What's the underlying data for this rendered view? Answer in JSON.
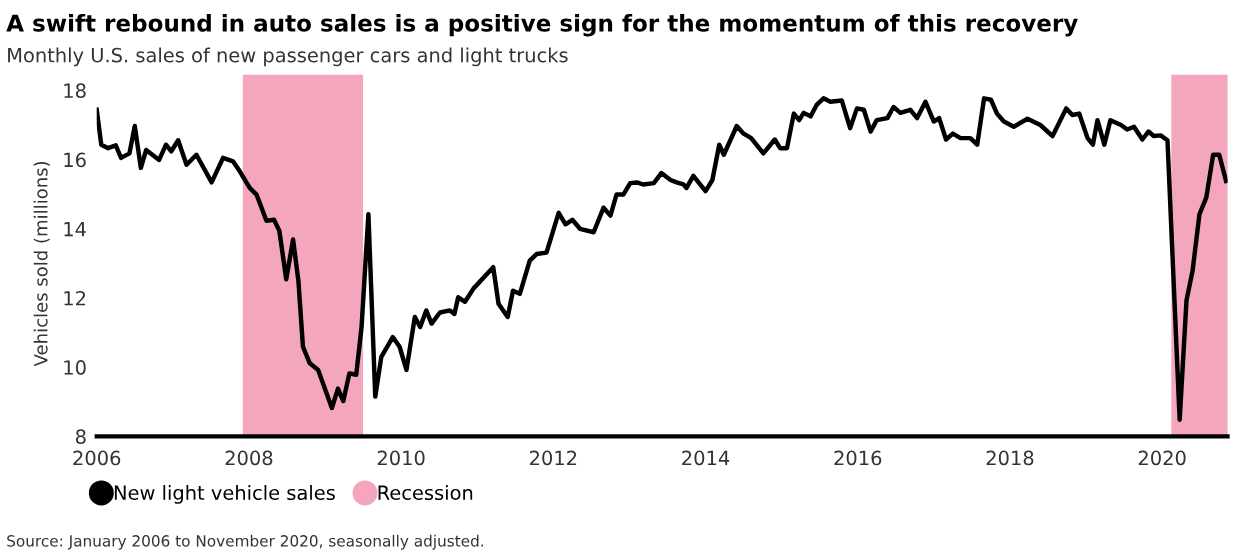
{
  "chart_data": {
    "type": "line",
    "title": "A swift rebound in auto sales is a positive sign for the momentum of this recovery",
    "subtitle": "Monthly U.S. sales of new passenger cars and light trucks",
    "ylabel": "Vehicles sold (millions)",
    "annotations": [
      "Source: January 2006 to November 2020, seasonally adjusted."
    ],
    "series": [
      {
        "name": "New light vehicle sales",
        "color": "#000000",
        "x": [
          2006.0,
          2006.06,
          2006.15,
          2006.25,
          2006.32,
          2006.43,
          2006.5,
          2006.58,
          2006.65,
          2006.82,
          2006.91,
          2006.98,
          2007.07,
          2007.18,
          2007.31,
          2007.51,
          2007.66,
          2007.79,
          2007.88,
          2008.01,
          2008.1,
          2008.23,
          2008.33,
          2008.4,
          2008.49,
          2008.58,
          2008.65,
          2008.71,
          2008.8,
          2008.91,
          2009.09,
          2009.17,
          2009.24,
          2009.32,
          2009.41,
          2009.48,
          2009.57,
          2009.66,
          2009.74,
          2009.89,
          2009.98,
          2010.07,
          2010.18,
          2010.25,
          2010.33,
          2010.4,
          2010.51,
          2010.64,
          2010.7,
          2010.75,
          2010.84,
          2010.95,
          2011.21,
          2011.28,
          2011.4,
          2011.47,
          2011.56,
          2011.69,
          2011.78,
          2011.91,
          2012.07,
          2012.16,
          2012.25,
          2012.35,
          2012.53,
          2012.66,
          2012.75,
          2012.83,
          2012.92,
          2013.01,
          2013.1,
          2013.18,
          2013.32,
          2013.42,
          2013.54,
          2013.62,
          2013.71,
          2013.75,
          2013.84,
          2014.0,
          2014.09,
          2014.18,
          2014.24,
          2014.41,
          2014.5,
          2014.6,
          2014.76,
          2014.91,
          2014.98,
          2015.07,
          2015.16,
          2015.23,
          2015.29,
          2015.38,
          2015.46,
          2015.55,
          2015.64,
          2015.79,
          2015.9,
          2015.99,
          2016.08,
          2016.17,
          2016.25,
          2016.39,
          2016.47,
          2016.56,
          2016.69,
          2016.78,
          2016.89,
          2017.0,
          2017.07,
          2017.16,
          2017.25,
          2017.35,
          2017.48,
          2017.57,
          2017.66,
          2017.75,
          2017.83,
          2017.92,
          2018.05,
          2018.23,
          2018.4,
          2018.56,
          2018.74,
          2018.82,
          2018.91,
          2019.02,
          2019.09,
          2019.15,
          2019.24,
          2019.32,
          2019.46,
          2019.54,
          2019.63,
          2019.74,
          2019.82,
          2019.89,
          2019.98,
          2020.07,
          2020.23,
          2020.32,
          2020.4,
          2020.49,
          2020.58,
          2020.67,
          2020.75,
          2020.84
        ],
        "values": [
          17.44,
          16.43,
          16.33,
          16.41,
          16.05,
          16.18,
          16.97,
          15.76,
          16.28,
          15.99,
          16.43,
          16.24,
          16.56,
          15.85,
          16.14,
          15.34,
          16.05,
          15.95,
          15.66,
          15.18,
          14.99,
          14.23,
          14.26,
          13.94,
          12.54,
          13.69,
          12.5,
          10.59,
          10.11,
          9.92,
          8.82,
          9.38,
          9.02,
          9.82,
          9.78,
          11.16,
          14.42,
          9.15,
          10.3,
          10.87,
          10.59,
          9.92,
          11.45,
          11.16,
          11.64,
          11.26,
          11.58,
          11.64,
          11.54,
          12.02,
          11.89,
          12.27,
          12.89,
          11.83,
          11.45,
          12.21,
          12.12,
          13.08,
          13.27,
          13.31,
          14.46,
          14.13,
          14.26,
          14.0,
          13.9,
          14.61,
          14.38,
          14.99,
          14.99,
          15.32,
          15.34,
          15.28,
          15.32,
          15.61,
          15.41,
          15.34,
          15.28,
          15.18,
          15.53,
          15.09,
          15.41,
          16.43,
          16.14,
          16.97,
          16.75,
          16.62,
          16.18,
          16.58,
          16.33,
          16.33,
          17.33,
          17.14,
          17.35,
          17.25,
          17.58,
          17.77,
          17.67,
          17.71,
          16.91,
          17.48,
          17.44,
          16.81,
          17.14,
          17.2,
          17.52,
          17.35,
          17.44,
          17.2,
          17.67,
          17.1,
          17.2,
          16.58,
          16.75,
          16.62,
          16.62,
          16.43,
          17.77,
          17.73,
          17.33,
          17.1,
          16.95,
          17.18,
          17.0,
          16.68,
          17.48,
          17.29,
          17.33,
          16.62,
          16.43,
          17.14,
          16.43,
          17.14,
          17.0,
          16.87,
          16.95,
          16.58,
          16.81,
          16.68,
          16.7,
          16.56,
          8.48,
          11.93,
          12.79,
          14.42,
          14.9,
          16.14,
          16.14,
          15.38
        ]
      }
    ],
    "bands": [
      {
        "axis": "x",
        "from": 2007.92,
        "to": 2009.5,
        "label": "Recession",
        "color": "#f4a6bd"
      },
      {
        "axis": "x",
        "from": 2020.12,
        "to": 2020.86,
        "color": "#f4a6bd"
      }
    ],
    "xlim": [
      2006,
      2020.86
    ],
    "xticks": [
      2006,
      2008,
      2010,
      2012,
      2014,
      2016,
      2018,
      2020
    ],
    "ylim": [
      8,
      18
    ],
    "yticks": [
      8,
      10,
      12,
      14,
      16,
      18
    ],
    "grid": false,
    "legend": "bottom left",
    "marker": "none",
    "line_style": "solid"
  }
}
